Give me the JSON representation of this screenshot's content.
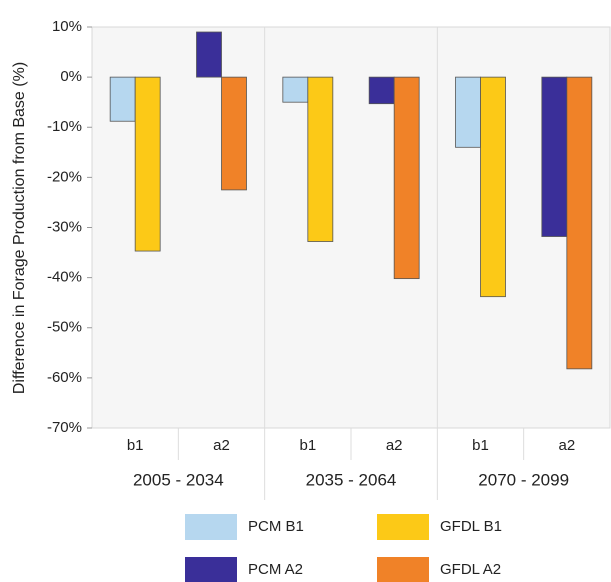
{
  "chart_data": {
    "type": "bar",
    "y_label": "Difference in Forage Production from Base (%)",
    "categories": [
      "b1",
      "a2",
      "b1",
      "a2",
      "b1",
      "a2"
    ],
    "groups": [
      "2005 - 2034",
      "2035 - 2064",
      "2070 - 2099"
    ],
    "series": [
      {
        "name": "PCM B1",
        "color": "#b6d7ef",
        "values": [
          -8.8,
          null,
          -5,
          null,
          -14,
          null
        ]
      },
      {
        "name": "PCM A2",
        "color": "#3a2f99",
        "values": [
          null,
          9,
          null,
          -5.3,
          null,
          -31.8
        ]
      },
      {
        "name": "GFDL B1",
        "color": "#fcc917",
        "values": [
          -34.7,
          null,
          -32.8,
          null,
          -43.8,
          null
        ]
      },
      {
        "name": "GFDL A2",
        "color": "#f08228",
        "values": [
          null,
          -22.5,
          null,
          -40.2,
          null,
          -58.2
        ]
      }
    ],
    "ylim": [
      -70,
      10
    ],
    "yticks": [
      {
        "value": 10,
        "label": "10%"
      },
      {
        "value": 0,
        "label": "0%"
      },
      {
        "value": -10,
        "label": "-10%"
      },
      {
        "value": -20,
        "label": "-20%"
      },
      {
        "value": -30,
        "label": "-30%"
      },
      {
        "value": -40,
        "label": "-40%"
      },
      {
        "value": -50,
        "label": "-50%"
      },
      {
        "value": -60,
        "label": "-60%"
      },
      {
        "value": -70,
        "label": "-70%"
      }
    ],
    "grid": false
  }
}
